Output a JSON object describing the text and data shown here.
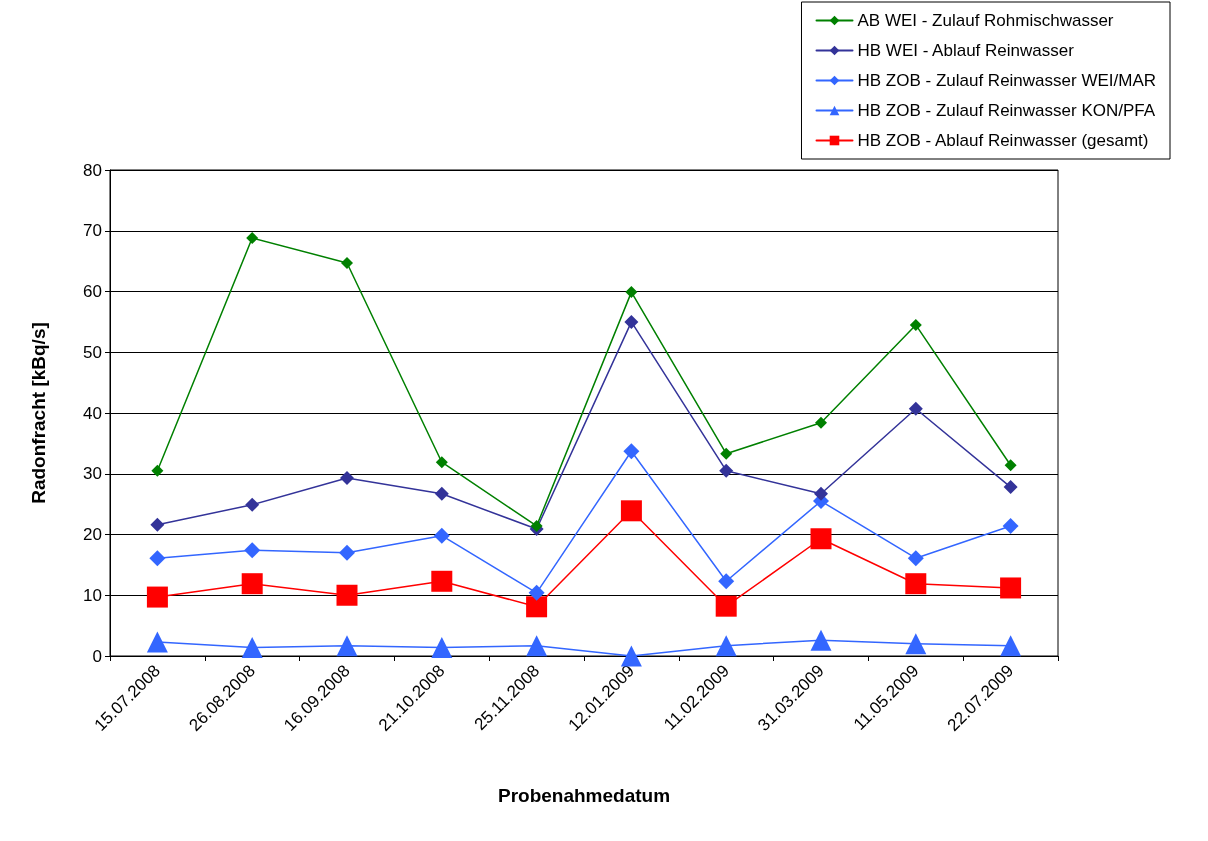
{
  "chart_data": {
    "type": "line",
    "xlabel": "Probenahmedatum",
    "ylabel": "Radonfracht [kBq/s]",
    "categories": [
      "15.07.2008",
      "26.08.2008",
      "16.09.2008",
      "21.10.2008",
      "25.11.2008",
      "12.01.2009",
      "11.02.2009",
      "31.03.2009",
      "11.05.2009",
      "22.07.2009"
    ],
    "ylim": [
      0,
      80
    ],
    "yticks": [
      0,
      10,
      20,
      30,
      40,
      50,
      60,
      70,
      80
    ],
    "grid": "y",
    "legend": "top right",
    "line_style": "solid",
    "series": [
      {
        "name": "AB WEI - Zulauf Rohmischwasser",
        "color": "#008000",
        "marker": "diamond",
        "values": [
          30.5,
          68.8,
          64.7,
          31.9,
          21.4,
          59.9,
          33.3,
          38.4,
          54.5,
          31.4
        ]
      },
      {
        "name": "HB WEI - Ablauf Reinwasser",
        "color": "#333399",
        "marker": "diamond",
        "values": [
          21.6,
          24.9,
          29.3,
          26.7,
          20.9,
          55,
          30.5,
          26.7,
          40.7,
          27.8
        ]
      },
      {
        "name": "HB ZOB - Zulauf Reinwasser WEI/MAR",
        "color": "#3366ff",
        "marker": "diamond",
        "values": [
          16.1,
          17.4,
          17,
          19.8,
          10.4,
          33.7,
          12.3,
          25.5,
          16.1,
          21.4
        ]
      },
      {
        "name": "HB ZOB - Zulauf Reinwasser KON/PFA",
        "color": "#3366ff",
        "marker": "triangle",
        "values": [
          2.3,
          1.4,
          1.7,
          1.4,
          1.7,
          0,
          1.7,
          2.6,
          2,
          1.7
        ]
      },
      {
        "name": "HB ZOB - Ablauf Reinwasser (gesamt)",
        "color": "#ff0000",
        "marker": "square",
        "values": [
          9.7,
          11.9,
          10,
          12.3,
          8.1,
          23.9,
          8.2,
          19.3,
          11.9,
          11.2
        ]
      }
    ]
  }
}
